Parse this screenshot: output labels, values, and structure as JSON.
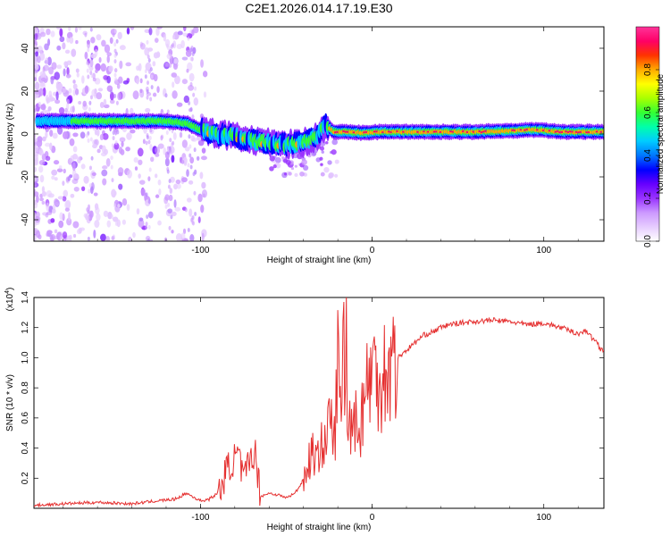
{
  "figure_title": "C2E1.2026.014.17.19.E30",
  "chart_data": [
    {
      "type": "heatmap",
      "title": "C2E1.2026.014.17.19.E30",
      "xlabel": "Height of straight line (km)",
      "ylabel": "Frequency (Hz)",
      "xlim": [
        -197,
        135
      ],
      "ylim": [
        -50,
        50
      ],
      "xticks": [
        -100,
        0,
        100
      ],
      "xtick_labels": [
        "-100",
        "0",
        "100"
      ],
      "yticks": [
        -40,
        -20,
        0,
        20,
        40
      ],
      "ytick_labels": [
        "-40",
        "-20",
        "0",
        "20",
        "40"
      ],
      "colorbar": {
        "label": "Normalized spectral amplitude",
        "range": [
          0,
          1
        ],
        "ticks": [
          0.0,
          0.2,
          0.4,
          0.6,
          0.8
        ],
        "tick_labels": [
          "0.0",
          "0.2",
          "0.4",
          "0.6",
          "0.8"
        ],
        "colors": [
          "#ffffff",
          "#e6ccff",
          "#cc99ff",
          "#9933ff",
          "#6600ff",
          "#0000ff",
          "#0077ff",
          "#00ccff",
          "#00ffaa",
          "#33ff33",
          "#aaff00",
          "#ffff00",
          "#ffaa00",
          "#ff3300",
          "#ff0066",
          "#ff3399"
        ]
      },
      "ridge": {
        "x": [
          -195,
          -180,
          -160,
          -140,
          -120,
          -108,
          -100,
          -90,
          -80,
          -70,
          -60,
          -50,
          -40,
          -32,
          -27,
          -22,
          -15,
          -5,
          5,
          20,
          40,
          60,
          80,
          95,
          110,
          135
        ],
        "y": [
          6,
          6,
          6,
          6,
          6,
          5,
          2,
          0,
          -1,
          -3,
          -4,
          -5,
          -4,
          -1,
          4,
          1,
          1,
          0.5,
          1,
          1,
          1,
          1,
          1.5,
          2,
          1,
          1
        ]
      }
    },
    {
      "type": "line",
      "xlabel": "Height of straight line (km)",
      "ylabel": "SNR (10 * v/v)",
      "y_scale_label": "(x10",
      "y_scale_exponent": "4",
      "xlim": [
        -197,
        135
      ],
      "ylim": [
        0,
        1.4
      ],
      "xticks": [
        -100,
        0,
        100
      ],
      "xtick_labels": [
        "-100",
        "0",
        "100"
      ],
      "yticks": [
        0.2,
        0.4,
        0.6,
        0.8,
        1.0,
        1.2,
        1.4
      ],
      "ytick_labels": [
        "0.2",
        "0.4",
        "0.6",
        "0.8",
        "1.0",
        "1.2",
        "1.4"
      ],
      "color": "#e53030",
      "series": [
        {
          "name": "SNR",
          "x": [
            -197,
            -180,
            -160,
            -140,
            -125,
            -115,
            -108,
            -105,
            -100,
            -95,
            -90,
            -88,
            -85,
            -82,
            -78,
            -75,
            -72,
            -70,
            -68,
            -65,
            -60,
            -55,
            -50,
            -45,
            -42,
            -38,
            -35,
            -32,
            -30,
            -28,
            -25,
            -22,
            -20,
            -18,
            -17,
            -16,
            -15,
            -14,
            -13,
            -12,
            -10,
            -8,
            -5,
            -3,
            0,
            3,
            5,
            8,
            10,
            15,
            20,
            25,
            30,
            35,
            40,
            45,
            50,
            60,
            70,
            80,
            90,
            100,
            110,
            115,
            120,
            125,
            128,
            130,
            133,
            135
          ],
          "y": [
            0.02,
            0.03,
            0.04,
            0.03,
            0.05,
            0.06,
            0.1,
            0.08,
            0.05,
            0.06,
            0.1,
            0.14,
            0.25,
            0.3,
            0.36,
            0.18,
            0.3,
            0.37,
            0.36,
            0.08,
            0.1,
            0.09,
            0.07,
            0.1,
            0.15,
            0.25,
            0.4,
            0.28,
            0.55,
            0.35,
            0.6,
            0.45,
            0.95,
            0.6,
            1.4,
            0.6,
            1.3,
            0.4,
            0.55,
            0.7,
            0.65,
            0.45,
            0.75,
            0.8,
            0.95,
            0.85,
            0.9,
            0.92,
            0.95,
            1.0,
            1.05,
            1.1,
            1.15,
            1.17,
            1.2,
            1.22,
            1.23,
            1.24,
            1.25,
            1.24,
            1.22,
            1.23,
            1.2,
            1.18,
            1.16,
            1.18,
            1.13,
            1.12,
            1.06,
            1.05
          ]
        }
      ]
    }
  ]
}
